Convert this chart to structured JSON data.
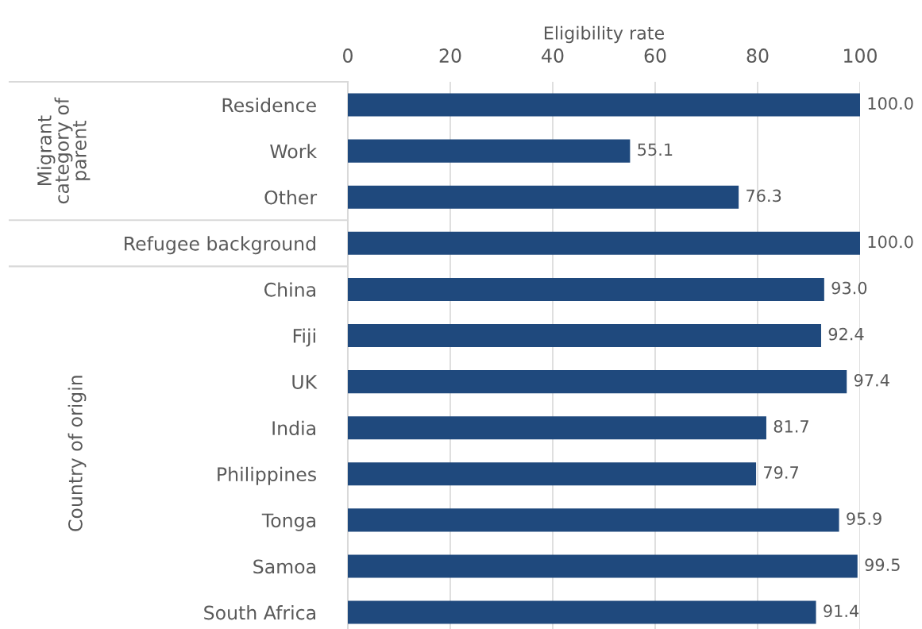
{
  "chart_data": {
    "type": "bar",
    "orientation": "horizontal",
    "xlabel": "Eligibility rate",
    "categories": [
      "Residence",
      "Work",
      "Other",
      "Refugee background",
      "China",
      "Fiji",
      "UK",
      "India",
      "Philippines",
      "Tonga",
      "Samoa",
      "South Africa"
    ],
    "values": [
      100.0,
      55.1,
      76.3,
      100.0,
      93.0,
      92.4,
      97.4,
      81.7,
      79.7,
      95.9,
      99.5,
      91.4
    ],
    "value_labels": [
      "100.0",
      "55.1",
      "76.3",
      "100.0",
      "93.0",
      "92.4",
      "97.4",
      "81.7",
      "79.7",
      "95.9",
      "99.5",
      "91.4"
    ],
    "color": "#1f497d",
    "xlim": [
      0,
      100
    ],
    "xticks": [
      0,
      20,
      40,
      60,
      80,
      100
    ],
    "grid": "x",
    "annotations": [
      "Migrant\ncategory of\nparent",
      "Country of origin"
    ]
  }
}
